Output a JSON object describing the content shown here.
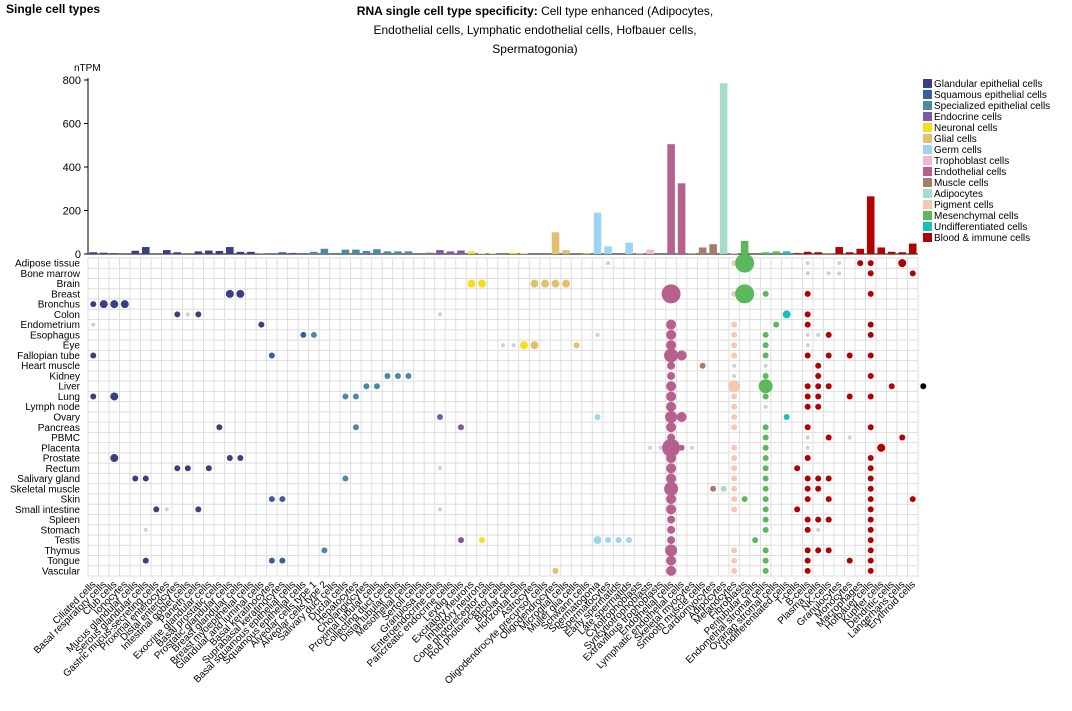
{
  "header": {
    "section_title": "Single cell types",
    "title_bold": "RNA single cell type specificity:",
    "title_rest": " Cell type enhanced (Adipocytes, Endothelial cells, Lymphatic endothelial cells, Hofbauer cells, Spermatogonia)"
  },
  "chart_data": {
    "type": "bar",
    "ylabel": "nTPM",
    "ylim": [
      0,
      800
    ],
    "yticks": [
      0,
      200,
      400,
      600,
      800
    ],
    "categories": [
      "Ciliated cells",
      "Basal respiratory cells",
      "Club cells",
      "Ionocytes",
      "Mucus glandular cells",
      "Serous glandular cells",
      "Gastric mucus-secreting cells",
      "Proximal enterocytes",
      "Distal enterocytes",
      "Intestinal goblet cells",
      "Paneth cells",
      "Exocrine glandular cells",
      "Basal prostatic cells",
      "Prostatic glandular cells",
      "Breast glandular cells",
      "Breast myoepithelial cells",
      "Glandular and luminal cells",
      "Basal keratinocytes",
      "Suprabasal keratinocytes",
      "Basal squamous epithelial cells",
      "Squamous epithelial cells",
      "Alveolar cells type 1",
      "Alveolar cells type 2",
      "Salivary duct cells",
      "Ductal cells",
      "Hepatocytes",
      "Cholangiocytes",
      "Proximal tubular cells",
      "Collecting duct cells",
      "Distal tubular cells",
      "Mesothelial cells",
      "Sertoli cells",
      "Granulosa cells",
      "Enteroendocrine cells",
      "Pancreatic endocrine cells",
      "Leydig cells",
      "Excitatory neurons",
      "Inhibitory neurons",
      "Cone photoreceptor cells",
      "Rod photoreceptor cells",
      "Bipolar cells",
      "Horizontal cells",
      "Astrocytes",
      "Oligodendrocyte precursor cells",
      "Oligodendrocytes",
      "Microglial cells",
      "Muller glia cells",
      "Schwann cells",
      "Spermatogonia",
      "Spermatocytes",
      "Early spermatids",
      "Late spermatids",
      "Cytotrophoblasts",
      "Syncytiotrophoblasts",
      "Extravillous trophoblasts",
      "Endothelial cells",
      "Lymphatic endothelial cells",
      "Skeletal myocytes",
      "Smooth muscle cells",
      "Cardiomyocytes",
      "Adipocytes",
      "Melanocytes",
      "Fibroblasts",
      "Peritubular cells",
      "Endometrial stromal cells",
      "Ovarian stromal cells",
      "Undifferentiated cells",
      "T-cells",
      "B-cells",
      "Plasma cells",
      "NK-cells",
      "Granulocytes",
      "Monocytes",
      "Macrophages",
      "Hofbauer cells",
      "Kupffer cells",
      "Dendritic cells",
      "Langerhans cells",
      "Erythroid cells"
    ],
    "values": [
      8,
      6,
      4,
      0,
      15,
      32,
      0,
      18,
      8,
      0,
      12,
      16,
      14,
      32,
      10,
      10,
      2,
      0,
      8,
      5,
      4,
      10,
      24,
      5,
      20,
      20,
      14,
      22,
      12,
      12,
      12,
      0,
      6,
      18,
      12,
      16,
      12,
      3,
      2,
      0,
      6,
      2,
      0,
      0,
      100,
      18,
      0,
      5,
      190,
      35,
      0,
      52,
      5,
      20,
      0,
      505,
      325,
      3,
      30,
      45,
      785,
      5,
      60,
      0,
      8,
      12,
      12,
      4,
      10,
      8,
      2,
      32,
      8,
      24,
      265,
      30,
      10,
      8,
      48
    ],
    "colors": [
      "#3a3f82",
      "#3a3f82",
      "#3a3f82",
      "#3a3f82",
      "#3a3f82",
      "#3a3f82",
      "#3a3f82",
      "#3a3f82",
      "#3a3f82",
      "#3a3f82",
      "#3a3f82",
      "#3a3f82",
      "#3a3f82",
      "#3a3f82",
      "#3a3f82",
      "#3a3f82",
      "#3a3f82",
      "#3c5e9e",
      "#3c5e9e",
      "#3c5e9e",
      "#3c5e9e",
      "#4a8aa6",
      "#4a8aa6",
      "#4a8aa6",
      "#4a8aa6",
      "#4a8aa6",
      "#4a8aa6",
      "#4a8aa6",
      "#4a8aa6",
      "#4a8aa6",
      "#4a8aa6",
      "#4a8aa6",
      "#4a8aa6",
      "#7d5aa0",
      "#7d5aa0",
      "#7d5aa0",
      "#f6dd1e",
      "#f6dd1e",
      "#f6dd1e",
      "#f6dd1e",
      "#f6dd1e",
      "#f6dd1e",
      "#e2c072",
      "#e2c072",
      "#e2c072",
      "#e2c072",
      "#e2c072",
      "#e2c072",
      "#9dd4ef",
      "#9dd4ef",
      "#9dd4ef",
      "#9dd4ef",
      "#f3b6cd",
      "#f3b6cd",
      "#f3b6cd",
      "#b5608f",
      "#b5608f",
      "#a67d68",
      "#a67d68",
      "#a67d68",
      "#a6dccb",
      "#f7c7b3",
      "#5cb85c",
      "#5cb85c",
      "#5cb85c",
      "#5cb85c",
      "#18c0b8",
      "#b30000",
      "#b30000",
      "#b30000",
      "#b30000",
      "#b30000",
      "#b30000",
      "#b30000",
      "#b30000",
      "#b30000",
      "#b30000",
      "#b30000",
      "#b30000"
    ],
    "tissues": [
      "Adipose tissue",
      "Bone marrow",
      "Brain",
      "Breast",
      "Bronchus",
      "Colon",
      "Endometrium",
      "Esophagus",
      "Eye",
      "Fallopian tube",
      "Heart muscle",
      "Kidney",
      "Liver",
      "Lung",
      "Lymph node",
      "Ovary",
      "Pancreas",
      "PBMC",
      "Placenta",
      "Prostate",
      "Rectum",
      "Salivary gland",
      "Skeletal muscle",
      "Skin",
      "Small intestine",
      "Spleen",
      "Stomach",
      "Testis",
      "Thymus",
      "Tongue",
      "Vascular"
    ],
    "legend": [
      {
        "label": "Glandular epithelial cells",
        "color": "#3a3f82"
      },
      {
        "label": "Squamous epithelial cells",
        "color": "#3c5e9e"
      },
      {
        "label": "Specialized epithelial cells",
        "color": "#4a8aa6"
      },
      {
        "label": "Endocrine cells",
        "color": "#7d5aa0"
      },
      {
        "label": "Neuronal cells",
        "color": "#f6dd1e"
      },
      {
        "label": "Glial cells",
        "color": "#e2c072"
      },
      {
        "label": "Germ cells",
        "color": "#9dd4ef"
      },
      {
        "label": "Trophoblast cells",
        "color": "#f3b6cd"
      },
      {
        "label": "Endothelial cells",
        "color": "#b5608f"
      },
      {
        "label": "Muscle cells",
        "color": "#a67d68"
      },
      {
        "label": "Adipocytes",
        "color": "#a6dccb"
      },
      {
        "label": "Pigment cells",
        "color": "#f7c7b3"
      },
      {
        "label": "Mesenchymal cells",
        "color": "#5cb85c"
      },
      {
        "label": "Undifferentiated cells",
        "color": "#18c0b8"
      },
      {
        "label": "Blood & immune cells",
        "color": "#b30000"
      }
    ],
    "legend_position": "right",
    "grid": true,
    "bubble_size_scale": "nTPM",
    "bubbles": [
      [
        0,
        49,
        2
      ],
      [
        0,
        61,
        3
      ],
      [
        0,
        62,
        14
      ],
      [
        0,
        68,
        2
      ],
      [
        0,
        71,
        2
      ],
      [
        0,
        73,
        3
      ],
      [
        0,
        74,
        3
      ],
      [
        0,
        77,
        4
      ],
      [
        1,
        68,
        2
      ],
      [
        1,
        70,
        2
      ],
      [
        1,
        71,
        2
      ],
      [
        1,
        74,
        3
      ],
      [
        1,
        78,
        3
      ],
      [
        2,
        36,
        4
      ],
      [
        2,
        37,
        4
      ],
      [
        2,
        42,
        4
      ],
      [
        2,
        43,
        4
      ],
      [
        2,
        44,
        4
      ],
      [
        2,
        45,
        4
      ],
      [
        3,
        13,
        4
      ],
      [
        3,
        14,
        4
      ],
      [
        3,
        55,
        12
      ],
      [
        3,
        61,
        3
      ],
      [
        3,
        62,
        12
      ],
      [
        3,
        64,
        3
      ],
      [
        3,
        68,
        3
      ],
      [
        3,
        74,
        3
      ],
      [
        4,
        0,
        3
      ],
      [
        4,
        1,
        4
      ],
      [
        4,
        2,
        4
      ],
      [
        4,
        3,
        4
      ],
      [
        5,
        8,
        3
      ],
      [
        5,
        9,
        2
      ],
      [
        5,
        10,
        3
      ],
      [
        5,
        33,
        2
      ],
      [
        5,
        66,
        4
      ],
      [
        5,
        68,
        3
      ],
      [
        6,
        0,
        2
      ],
      [
        6,
        16,
        3
      ],
      [
        6,
        55,
        5
      ],
      [
        6,
        61,
        3
      ],
      [
        6,
        65,
        3
      ],
      [
        6,
        68,
        3
      ],
      [
        6,
        74,
        3
      ],
      [
        7,
        20,
        3
      ],
      [
        7,
        21,
        3
      ],
      [
        7,
        48,
        2
      ],
      [
        7,
        55,
        5
      ],
      [
        7,
        61,
        3
      ],
      [
        7,
        64,
        3
      ],
      [
        7,
        68,
        2
      ],
      [
        7,
        69,
        2
      ],
      [
        7,
        70,
        3
      ],
      [
        7,
        74,
        3
      ],
      [
        8,
        39,
        2
      ],
      [
        8,
        40,
        2
      ],
      [
        8,
        41,
        4
      ],
      [
        8,
        42,
        4
      ],
      [
        8,
        46,
        3
      ],
      [
        8,
        55,
        5
      ],
      [
        8,
        61,
        3
      ],
      [
        8,
        64,
        3
      ],
      [
        8,
        68,
        2
      ],
      [
        9,
        0,
        3
      ],
      [
        9,
        17,
        3
      ],
      [
        9,
        55,
        7
      ],
      [
        9,
        56,
        5
      ],
      [
        9,
        61,
        3
      ],
      [
        9,
        64,
        3
      ],
      [
        9,
        68,
        3
      ],
      [
        9,
        70,
        3
      ],
      [
        9,
        72,
        3
      ],
      [
        9,
        74,
        3
      ],
      [
        10,
        55,
        4
      ],
      [
        10,
        58,
        3
      ],
      [
        10,
        61,
        2
      ],
      [
        10,
        64,
        2
      ],
      [
        10,
        69,
        3
      ],
      [
        11,
        28,
        3
      ],
      [
        11,
        29,
        3
      ],
      [
        11,
        30,
        3
      ],
      [
        11,
        55,
        4
      ],
      [
        11,
        61,
        2
      ],
      [
        11,
        64,
        3
      ],
      [
        11,
        69,
        3
      ],
      [
        11,
        74,
        3
      ],
      [
        12,
        26,
        3
      ],
      [
        12,
        27,
        3
      ],
      [
        12,
        55,
        5
      ],
      [
        12,
        61,
        6
      ],
      [
        12,
        64,
        7
      ],
      [
        12,
        68,
        3
      ],
      [
        12,
        69,
        3
      ],
      [
        12,
        70,
        3
      ],
      [
        12,
        76,
        3
      ],
      [
        12,
        79,
        3
      ],
      [
        13,
        0,
        3
      ],
      [
        13,
        2,
        4
      ],
      [
        13,
        24,
        3
      ],
      [
        13,
        25,
        3
      ],
      [
        13,
        55,
        5
      ],
      [
        13,
        61,
        3
      ],
      [
        13,
        64,
        3
      ],
      [
        13,
        68,
        3
      ],
      [
        13,
        69,
        3
      ],
      [
        13,
        72,
        3
      ],
      [
        13,
        74,
        3
      ],
      [
        14,
        55,
        5
      ],
      [
        14,
        61,
        3
      ],
      [
        14,
        64,
        2
      ],
      [
        14,
        68,
        3
      ],
      [
        14,
        69,
        3
      ],
      [
        15,
        33,
        3
      ],
      [
        15,
        48,
        3
      ],
      [
        15,
        55,
        6
      ],
      [
        15,
        56,
        5
      ],
      [
        15,
        61,
        3
      ],
      [
        15,
        66,
        3
      ],
      [
        16,
        12,
        3
      ],
      [
        16,
        25,
        3
      ],
      [
        16,
        35,
        3
      ],
      [
        16,
        55,
        5
      ],
      [
        16,
        61,
        3
      ],
      [
        16,
        64,
        3
      ],
      [
        16,
        68,
        3
      ],
      [
        16,
        74,
        3
      ],
      [
        17,
        55,
        4
      ],
      [
        17,
        64,
        3
      ],
      [
        17,
        68,
        2
      ],
      [
        17,
        70,
        3
      ],
      [
        17,
        72,
        2
      ],
      [
        17,
        77,
        3
      ],
      [
        18,
        53,
        2
      ],
      [
        18,
        54,
        2
      ],
      [
        18,
        55,
        9
      ],
      [
        18,
        56,
        3
      ],
      [
        18,
        57,
        2
      ],
      [
        18,
        61,
        3
      ],
      [
        18,
        64,
        3
      ],
      [
        18,
        68,
        2
      ],
      [
        18,
        75,
        4
      ],
      [
        19,
        2,
        4
      ],
      [
        19,
        13,
        3
      ],
      [
        19,
        14,
        3
      ],
      [
        19,
        55,
        5
      ],
      [
        19,
        61,
        3
      ],
      [
        19,
        64,
        3
      ],
      [
        19,
        68,
        3
      ],
      [
        19,
        74,
        3
      ],
      [
        20,
        8,
        3
      ],
      [
        20,
        9,
        3
      ],
      [
        20,
        11,
        3
      ],
      [
        20,
        33,
        2
      ],
      [
        20,
        55,
        5
      ],
      [
        20,
        61,
        3
      ],
      [
        20,
        64,
        3
      ],
      [
        20,
        67,
        3
      ],
      [
        20,
        74,
        3
      ],
      [
        21,
        4,
        3
      ],
      [
        21,
        5,
        3
      ],
      [
        21,
        24,
        3
      ],
      [
        21,
        55,
        5
      ],
      [
        21,
        61,
        3
      ],
      [
        21,
        64,
        3
      ],
      [
        21,
        68,
        3
      ],
      [
        21,
        69,
        3
      ],
      [
        21,
        70,
        3
      ],
      [
        21,
        74,
        3
      ],
      [
        22,
        55,
        7
      ],
      [
        22,
        59,
        3
      ],
      [
        22,
        60,
        3
      ],
      [
        22,
        61,
        3
      ],
      [
        22,
        64,
        3
      ],
      [
        22,
        68,
        3
      ],
      [
        22,
        69,
        3
      ],
      [
        22,
        74,
        3
      ],
      [
        23,
        17,
        3
      ],
      [
        23,
        18,
        3
      ],
      [
        23,
        55,
        5
      ],
      [
        23,
        61,
        3
      ],
      [
        23,
        62,
        3
      ],
      [
        23,
        64,
        3
      ],
      [
        23,
        68,
        3
      ],
      [
        23,
        70,
        3
      ],
      [
        23,
        74,
        3
      ],
      [
        23,
        78,
        3
      ],
      [
        24,
        6,
        3
      ],
      [
        24,
        7,
        2
      ],
      [
        24,
        10,
        3
      ],
      [
        24,
        33,
        2
      ],
      [
        24,
        55,
        5
      ],
      [
        24,
        61,
        3
      ],
      [
        24,
        64,
        3
      ],
      [
        24,
        67,
        3
      ],
      [
        24,
        74,
        3
      ],
      [
        25,
        55,
        4
      ],
      [
        25,
        64,
        3
      ],
      [
        25,
        68,
        3
      ],
      [
        25,
        69,
        3
      ],
      [
        25,
        70,
        3
      ],
      [
        25,
        74,
        3
      ],
      [
        26,
        5,
        2
      ],
      [
        26,
        55,
        4
      ],
      [
        26,
        64,
        3
      ],
      [
        26,
        68,
        3
      ],
      [
        26,
        69,
        2
      ],
      [
        26,
        74,
        3
      ],
      [
        27,
        35,
        3
      ],
      [
        27,
        37,
        3
      ],
      [
        27,
        48,
        4
      ],
      [
        27,
        49,
        3
      ],
      [
        27,
        50,
        3
      ],
      [
        27,
        51,
        3
      ],
      [
        27,
        55,
        4
      ],
      [
        27,
        63,
        3
      ],
      [
        27,
        74,
        3
      ],
      [
        28,
        22,
        3
      ],
      [
        28,
        55,
        6
      ],
      [
        28,
        61,
        3
      ],
      [
        28,
        64,
        3
      ],
      [
        28,
        68,
        3
      ],
      [
        28,
        69,
        3
      ],
      [
        28,
        70,
        3
      ],
      [
        28,
        74,
        3
      ],
      [
        29,
        5,
        3
      ],
      [
        29,
        17,
        3
      ],
      [
        29,
        18,
        3
      ],
      [
        29,
        55,
        5
      ],
      [
        29,
        61,
        3
      ],
      [
        29,
        64,
        3
      ],
      [
        29,
        68,
        3
      ],
      [
        29,
        72,
        3
      ],
      [
        29,
        74,
        3
      ],
      [
        30,
        44,
        3
      ],
      [
        30,
        55,
        5
      ],
      [
        30,
        61,
        3
      ],
      [
        30,
        64,
        3
      ],
      [
        30,
        68,
        3
      ],
      [
        30,
        74,
        3
      ]
    ]
  }
}
